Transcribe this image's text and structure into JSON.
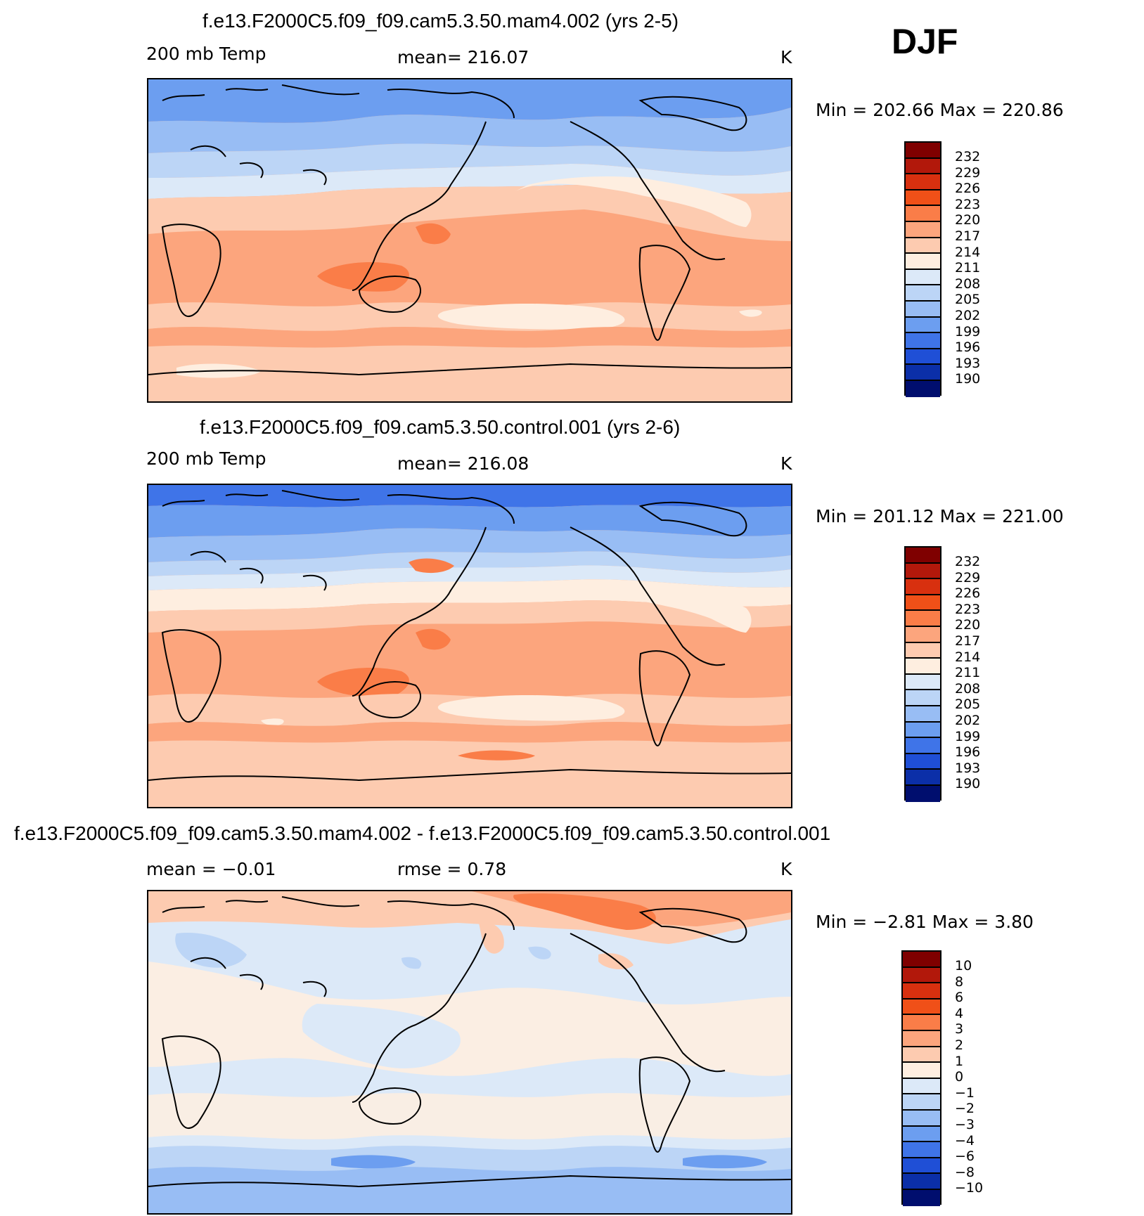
{
  "season": "DJF",
  "panels": [
    {
      "id": "top",
      "title": "f.e13.F2000C5.f09_f09.cam5.3.50.mam4.002 (yrs 2-5)",
      "left_label": "200 mb Temp",
      "center_label": "mean= 216.07",
      "right_label": "K",
      "minmax": "Min = 202.66 Max = 220.86",
      "colorbar_labels": [
        "232",
        "229",
        "226",
        "223",
        "220",
        "217",
        "214",
        "211",
        "208",
        "205",
        "202",
        "199",
        "196",
        "193",
        "190"
      ]
    },
    {
      "id": "middle",
      "title": "f.e13.F2000C5.f09_f09.cam5.3.50.control.001 (yrs 2-6)",
      "left_label": "200 mb Temp",
      "center_label": "mean= 216.08",
      "right_label": "K",
      "minmax": "Min = 201.12 Max = 221.00",
      "colorbar_labels": [
        "232",
        "229",
        "226",
        "223",
        "220",
        "217",
        "214",
        "211",
        "208",
        "205",
        "202",
        "199",
        "196",
        "193",
        "190"
      ]
    },
    {
      "id": "bottom",
      "title": "f.e13.F2000C5.f09_f09.cam5.3.50.mam4.002 - f.e13.F2000C5.f09_f09.cam5.3.50.control.001",
      "left_label": "mean = −0.01",
      "center_label": "rmse = 0.78",
      "right_label": "K",
      "minmax": "Min = −2.81 Max = 3.80",
      "colorbar_labels": [
        "10",
        "8",
        "6",
        "4",
        "3",
        "2",
        "1",
        "0",
        "−1",
        "−2",
        "−3",
        "−4",
        "−6",
        "−8",
        "−10"
      ]
    }
  ],
  "colors": {
    "scale": [
      "#7f0000",
      "#b2180b",
      "#d8300f",
      "#f05018",
      "#fa7d48",
      "#fca57d",
      "#fdcbb0",
      "#feeee0",
      "#dce9f8",
      "#bcd5f6",
      "#98bdf4",
      "#6c9ef0",
      "#3f74e8",
      "#1f4fd6",
      "#0b2fa8",
      "#000e6e"
    ]
  }
}
